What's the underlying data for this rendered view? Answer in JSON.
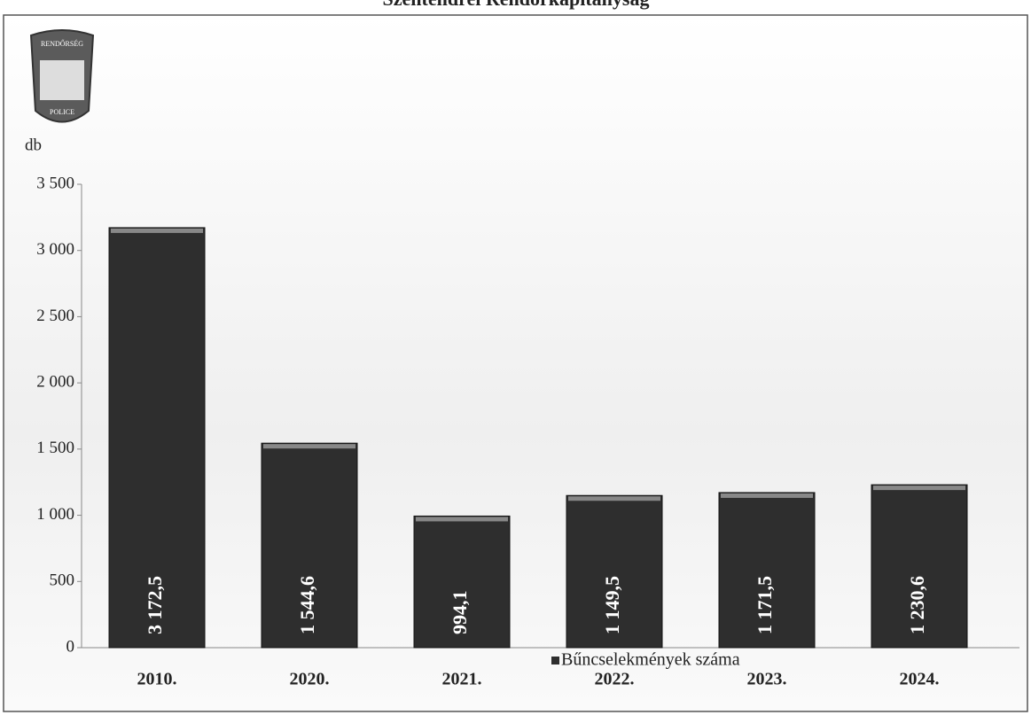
{
  "chart_data": {
    "type": "bar",
    "title": "Szentendrei Rendőrkapitányság",
    "y_label": "db",
    "annotations": [
      "RENDŐRSÉG",
      "POLICE"
    ],
    "categories": [
      "2010.",
      "2020.",
      "2021.",
      "2022.",
      "2023.",
      "2024."
    ],
    "series": [
      {
        "name": "Bűncselekmények száma",
        "color": "#2e2e2e",
        "values": [
          3172.5,
          1544.6,
          994.1,
          1149.5,
          1171.5,
          1230.6
        ],
        "value_labels": [
          "3 172,5",
          "1 544,6",
          "994,1",
          "1 149,5",
          "1 171,5",
          "1 230,6"
        ]
      }
    ],
    "ylim": [
      0,
      3500
    ],
    "yticks": [
      0,
      500,
      {
        "value": 1000,
        "label": "1 000"
      },
      {
        "value": 1500,
        "label": "1 500"
      },
      {
        "value": 2000,
        "label": "2 000"
      },
      {
        "value": 2500,
        "label": "2 500"
      },
      {
        "value": 3000,
        "label": "3 000"
      },
      {
        "value": 3500,
        "label": "3 500"
      }
    ],
    "grid": false
  }
}
